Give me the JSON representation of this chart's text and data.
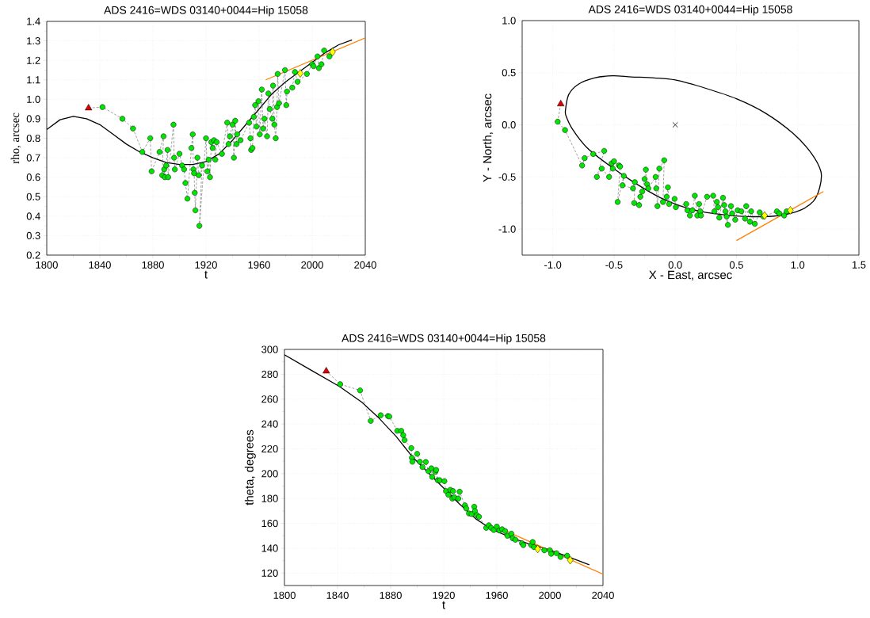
{
  "chart_data": [
    {
      "type": "scatter",
      "title": "ADS 2416=WDS 03140+0044=Hip 15058",
      "xlabel": "t",
      "ylabel": "rho,  arcsec",
      "grid": true,
      "xlim": [
        1800,
        2040
      ],
      "ylim": [
        0.2,
        1.4
      ],
      "xticks": [
        1800,
        1840,
        1880,
        1920,
        1960,
        2000,
        2040
      ],
      "yticks": [
        {
          "value": 0.2,
          "label": "0.2"
        },
        {
          "value": 0.3,
          "label": "0.3"
        },
        {
          "value": 0.4,
          "label": "0.4"
        },
        {
          "value": 0.5,
          "label": "0.5"
        },
        {
          "value": 0.6,
          "label": "0.6"
        },
        {
          "value": 0.7,
          "label": "0.7"
        },
        {
          "value": 0.8,
          "label": "0.8"
        },
        {
          "value": 0.9,
          "label": "0.9"
        },
        {
          "value": 1.0,
          "label": "1.0"
        },
        {
          "value": 1.1,
          "label": "1.1"
        },
        {
          "value": 1.2,
          "label": "1.2"
        },
        {
          "value": 1.3,
          "label": "1.3"
        },
        {
          "value": 1.4,
          "label": "1.4"
        }
      ],
      "series": [
        {
          "type": "line",
          "color": "#000000",
          "x": [
            1800,
            1810,
            1820,
            1830,
            1840,
            1850,
            1860,
            1870,
            1880,
            1890,
            1900,
            1910,
            1920,
            1930,
            1940,
            1950,
            1960,
            1970,
            1980,
            1990,
            2000,
            2010,
            2020,
            2030
          ],
          "values": [
            0.845,
            0.895,
            0.912,
            0.9,
            0.87,
            0.82,
            0.77,
            0.73,
            0.7,
            0.675,
            0.665,
            0.665,
            0.68,
            0.72,
            0.79,
            0.87,
            0.95,
            1.03,
            1.09,
            1.14,
            1.19,
            1.24,
            1.28,
            1.305
          ]
        },
        {
          "type": "line",
          "color": "#ff8000",
          "x": [
            1965,
            2040
          ],
          "values": [
            1.1,
            1.315
          ]
        },
        {
          "type": "line",
          "line_style": "dashed",
          "color": "#404040",
          "x": [
            1831.5,
            1842,
            1857,
            1865,
            1872,
            1878,
            1879,
            1885,
            1888,
            1887,
            1888.5,
            1889,
            1890,
            1891,
            1891.5,
            1895.5,
            1896,
            1896.5,
            1900,
            1902,
            1903.5,
            1904.5,
            1906,
            1909,
            1910,
            1910.5,
            1911,
            1911.5,
            1912,
            1913.5,
            1914.5,
            1917,
            1915,
            1920,
            1921,
            1922,
            1923,
            1924,
            1925,
            1926,
            1927,
            1928,
            1932,
            1936,
            1937,
            1938,
            1940,
            1941,
            1942,
            1943,
            1943.5,
            1946,
            1952.5,
            1953.5,
            1954,
            1955,
            1956,
            1957,
            1958,
            1959.5,
            1960.5,
            1962,
            1963,
            1964,
            1966,
            1967,
            1968,
            1970,
            1970.5,
            1971.5,
            1972.5,
            1973.5,
            1974,
            1975,
            1979.5,
            1980.5,
            1981,
            1985,
            1987,
            1989,
            1996,
            2000,
            2001,
            2004,
            2005,
            2007,
            2009,
            2013
          ],
          "values": [
            0.955,
            0.96,
            0.9,
            0.85,
            0.73,
            0.8,
            0.63,
            0.73,
            0.81,
            0.61,
            0.64,
            0.6,
            0.66,
            0.74,
            0.6,
            0.87,
            0.7,
            0.64,
            0.72,
            0.66,
            0.64,
            0.57,
            0.49,
            0.75,
            0.82,
            0.64,
            0.62,
            0.52,
            0.43,
            0.7,
            0.61,
            0.66,
            0.35,
            0.8,
            0.63,
            0.69,
            0.6,
            0.78,
            0.75,
            0.79,
            0.69,
            0.78,
            0.72,
            0.88,
            0.77,
            0.81,
            0.87,
            0.7,
            0.89,
            0.77,
            0.82,
            0.79,
            0.88,
            0.8,
            0.74,
            0.75,
            0.91,
            0.97,
            0.86,
            0.99,
            0.82,
            1.05,
            0.85,
            0.9,
            0.81,
            1.03,
            0.95,
            0.9,
            1.07,
            0.87,
            0.8,
            0.96,
            1.13,
            0.98,
            1.15,
            0.97,
            1.04,
            1.06,
            1.14,
            1.09,
            1.13,
            1.18,
            1.17,
            1.22,
            1.16,
            1.18,
            1.25,
            1.22
          ]
        },
        {
          "type": "scatter",
          "marker": "circle",
          "color": "#00e600",
          "x": [
            1842,
            1857,
            1865,
            1872,
            1878,
            1879,
            1885,
            1888,
            1887,
            1888.5,
            1889,
            1890,
            1891,
            1891.5,
            1895.5,
            1896,
            1896.5,
            1900,
            1902,
            1903.5,
            1904.5,
            1906,
            1909,
            1910,
            1910.5,
            1911,
            1911.5,
            1912,
            1913.5,
            1914.5,
            1917,
            1915,
            1920,
            1921,
            1922,
            1923,
            1924,
            1925,
            1926,
            1927,
            1928,
            1932,
            1936,
            1937,
            1938,
            1940,
            1941,
            1942,
            1943,
            1943.5,
            1946,
            1952.5,
            1953.5,
            1954,
            1955,
            1956,
            1957,
            1958,
            1959.5,
            1960.5,
            1962,
            1963,
            1964,
            1966,
            1967,
            1968,
            1970,
            1970.5,
            1971.5,
            1972.5,
            1973.5,
            1974,
            1975,
            1979.5,
            1980.5,
            1981,
            1985,
            1987,
            1989,
            1996,
            2000,
            2001,
            2004,
            2005,
            2007,
            2009,
            2013
          ],
          "values": [
            0.96,
            0.9,
            0.85,
            0.73,
            0.8,
            0.63,
            0.73,
            0.81,
            0.61,
            0.64,
            0.6,
            0.66,
            0.74,
            0.6,
            0.87,
            0.7,
            0.64,
            0.72,
            0.66,
            0.64,
            0.57,
            0.49,
            0.75,
            0.82,
            0.64,
            0.62,
            0.52,
            0.43,
            0.7,
            0.61,
            0.66,
            0.35,
            0.8,
            0.63,
            0.69,
            0.6,
            0.78,
            0.75,
            0.79,
            0.69,
            0.78,
            0.72,
            0.88,
            0.77,
            0.81,
            0.87,
            0.7,
            0.89,
            0.77,
            0.82,
            0.79,
            0.88,
            0.8,
            0.74,
            0.75,
            0.91,
            0.97,
            0.86,
            0.99,
            0.82,
            1.05,
            0.85,
            0.9,
            0.81,
            1.03,
            0.95,
            0.9,
            1.07,
            0.87,
            0.8,
            0.96,
            1.13,
            0.98,
            1.15,
            0.97,
            1.04,
            1.06,
            1.14,
            1.09,
            1.13,
            1.18,
            1.17,
            1.22,
            1.16,
            1.18,
            1.25,
            1.22
          ]
        },
        {
          "type": "scatter",
          "marker": "triangle",
          "color": "#e00000",
          "x": [
            1831.5
          ],
          "values": [
            0.955
          ]
        },
        {
          "type": "scatter",
          "marker": "diamond",
          "color": "#ffff00",
          "x": [
            1991,
            2015.3
          ],
          "values": [
            1.133,
            1.243
          ]
        }
      ]
    },
    {
      "type": "scatter",
      "title": "ADS 2416=WDS 03140+0044=Hip 15058",
      "xlabel": "X - East, arcsec",
      "ylabel": "Y - North, arcsec",
      "grid": true,
      "xlim": [
        -1.25,
        1.5
      ],
      "ylim": [
        -1.25,
        1.0
      ],
      "xticks": [
        {
          "value": -1,
          "label": "-1.0"
        },
        {
          "value": -0.5,
          "label": "-0.5"
        },
        {
          "value": 0,
          "label": "0.0"
        },
        {
          "value": 0.5,
          "label": "0.5"
        },
        {
          "value": 1,
          "label": "1.0"
        },
        {
          "value": 1.5,
          "label": "1.5"
        }
      ],
      "yticks": [
        {
          "value": -1,
          "label": "-1.0"
        },
        {
          "value": -0.5,
          "label": "-0.5"
        },
        {
          "value": 0,
          "label": "0.0"
        },
        {
          "value": 0.5,
          "label": "0.5"
        },
        {
          "value": 1,
          "label": "1.0"
        }
      ],
      "series": [
        {
          "type": "line",
          "color": "#ff8000",
          "x": [
            0.5,
            1.21
          ],
          "values": [
            -1.11,
            -0.64
          ]
        },
        {
          "type": "line",
          "line_style": "dashed",
          "color": "#404040",
          "x": [
            -0.935,
            -0.96,
            -0.9,
            -0.76,
            -0.74,
            -0.67,
            -0.58,
            -0.64,
            -0.6,
            -0.54,
            -0.52,
            -0.51,
            -0.5,
            -0.46,
            -0.45,
            -0.47,
            -0.42,
            -0.43,
            -0.345,
            -0.33,
            -0.335,
            -0.295,
            -0.285,
            -0.27,
            -0.25,
            -0.24,
            -0.23,
            -0.22,
            -0.16,
            -0.155,
            -0.145,
            -0.13,
            -0.09,
            -0.1,
            -0.07,
            -0.06,
            -0.05,
            -0.005,
            0.005,
            0.09,
            0.1,
            0.12,
            0.14,
            0.16,
            0.18,
            0.195,
            0.205,
            0.21,
            0.26,
            0.31,
            0.32,
            0.34,
            0.35,
            0.36,
            0.39,
            0.4,
            0.41,
            0.43,
            0.42,
            0.455,
            0.465,
            0.49,
            0.51,
            0.54,
            0.57,
            0.58,
            0.61,
            0.62,
            0.65,
            0.69,
            0.72,
            0.83,
            0.85,
            0.89,
            0.91
          ],
          "values": [
            0.2,
            0.03,
            -0.05,
            -0.39,
            -0.32,
            -0.28,
            -0.25,
            -0.5,
            -0.42,
            -0.5,
            -0.37,
            -0.42,
            -0.35,
            -0.39,
            -0.4,
            -0.74,
            -0.49,
            -0.58,
            -0.61,
            -0.55,
            -0.75,
            -0.77,
            -0.69,
            -0.64,
            -0.52,
            -0.43,
            -0.57,
            -0.61,
            -0.5,
            -0.61,
            -0.78,
            -0.42,
            -0.34,
            -0.74,
            -0.69,
            -0.6,
            -0.76,
            -0.71,
            -0.79,
            -0.76,
            -0.82,
            -0.87,
            -0.82,
            -0.68,
            -0.87,
            -0.76,
            -0.83,
            -0.87,
            -0.69,
            -0.68,
            -0.83,
            -0.74,
            -0.79,
            -0.89,
            -0.7,
            -0.77,
            -0.83,
            -0.96,
            -0.88,
            -0.78,
            -0.85,
            -0.91,
            -0.82,
            -0.83,
            -0.9,
            -0.78,
            -0.93,
            -0.83,
            -0.95,
            -0.84,
            -0.88,
            -0.83,
            -0.85,
            -0.87,
            -0.83
          ]
        },
        {
          "type": "scatter",
          "marker": "circle",
          "color": "#00e600",
          "x": [
            -0.96,
            -0.9,
            -0.76,
            -0.74,
            -0.67,
            -0.58,
            -0.64,
            -0.6,
            -0.54,
            -0.52,
            -0.51,
            -0.5,
            -0.46,
            -0.45,
            -0.47,
            -0.42,
            -0.43,
            -0.345,
            -0.33,
            -0.335,
            -0.295,
            -0.285,
            -0.27,
            -0.25,
            -0.24,
            -0.23,
            -0.22,
            -0.16,
            -0.155,
            -0.145,
            -0.13,
            -0.09,
            -0.1,
            -0.07,
            -0.06,
            -0.05,
            -0.005,
            0.005,
            0.09,
            0.1,
            0.12,
            0.14,
            0.16,
            0.18,
            0.195,
            0.205,
            0.21,
            0.26,
            0.31,
            0.32,
            0.34,
            0.35,
            0.36,
            0.39,
            0.4,
            0.41,
            0.43,
            0.42,
            0.455,
            0.465,
            0.49,
            0.51,
            0.54,
            0.57,
            0.58,
            0.61,
            0.62,
            0.65,
            0.69,
            0.72,
            0.83,
            0.85,
            0.89,
            0.91
          ],
          "values": [
            0.03,
            -0.05,
            -0.39,
            -0.32,
            -0.28,
            -0.25,
            -0.5,
            -0.42,
            -0.5,
            -0.37,
            -0.42,
            -0.35,
            -0.39,
            -0.4,
            -0.74,
            -0.49,
            -0.58,
            -0.61,
            -0.55,
            -0.75,
            -0.77,
            -0.69,
            -0.64,
            -0.52,
            -0.43,
            -0.57,
            -0.61,
            -0.5,
            -0.61,
            -0.78,
            -0.42,
            -0.34,
            -0.74,
            -0.69,
            -0.6,
            -0.76,
            -0.71,
            -0.79,
            -0.76,
            -0.82,
            -0.87,
            -0.82,
            -0.68,
            -0.87,
            -0.76,
            -0.83,
            -0.87,
            -0.69,
            -0.68,
            -0.83,
            -0.74,
            -0.79,
            -0.89,
            -0.7,
            -0.77,
            -0.83,
            -0.96,
            -0.88,
            -0.78,
            -0.85,
            -0.91,
            -0.82,
            -0.83,
            -0.9,
            -0.78,
            -0.93,
            -0.83,
            -0.95,
            -0.84,
            -0.88,
            -0.83,
            -0.85,
            -0.87,
            -0.83
          ]
        },
        {
          "type": "scatter",
          "marker": "triangle",
          "color": "#e00000",
          "x": [
            -0.935
          ],
          "values": [
            0.2
          ]
        },
        {
          "type": "scatter",
          "marker": "diamond",
          "color": "#ffff00",
          "x": [
            0.73,
            0.94
          ],
          "values": [
            -0.87,
            -0.82
          ]
        },
        {
          "type": "scatter",
          "marker": "cross",
          "color": "#000000",
          "x": [
            0.0
          ],
          "values": [
            0.0
          ]
        }
      ]
    },
    {
      "type": "scatter",
      "title": "ADS 2416=WDS 03140+0044=Hip 15058",
      "xlabel": "t",
      "ylabel": "theta, degrees",
      "grid": true,
      "xlim": [
        1800,
        2040
      ],
      "ylim": [
        110,
        300
      ],
      "xticks": [
        1800,
        1840,
        1880,
        1920,
        1960,
        2000,
        2040
      ],
      "yticks": [
        120,
        140,
        160,
        180,
        200,
        220,
        240,
        260,
        280,
        300
      ],
      "series": [
        {
          "type": "line",
          "color": "#000000",
          "x": [
            1800,
            1820.5,
            1841.4,
            1858.4,
            1870.3,
            1884.3,
            1896.2,
            1908.2,
            1920.1,
            1932,
            1944,
            1956,
            1970,
            1984,
            1997.8,
            2011.7,
            2029.7
          ],
          "values": [
            295.7,
            283,
            270.2,
            257.4,
            245.7,
            229.8,
            213.8,
            201,
            188.3,
            175.5,
            163.8,
            155.3,
            148.9,
            143.6,
            139.4,
            134,
            126.6
          ]
        },
        {
          "type": "line",
          "color": "#ff8000",
          "x": [
            1965,
            2040
          ],
          "values": [
            154.7,
            119.1
          ]
        },
        {
          "type": "line",
          "line_style": "dashed",
          "color": "#404040",
          "x": [
            1831.5,
            1842,
            1857,
            1865,
            1872.5,
            1878,
            1879,
            1885,
            1888,
            1889.5,
            1890.5,
            1895.6,
            1896,
            1896.4,
            1900,
            1902,
            1904,
            1906.5,
            1908.5,
            1910.7,
            1911.3,
            1913.7,
            1914.3,
            1915.5,
            1917,
            1920.5,
            1921.7,
            1923.5,
            1925,
            1926.5,
            1927,
            1928,
            1931,
            1932,
            1936,
            1937,
            1939,
            1941,
            1943,
            1943.5,
            1945,
            1946.6,
            1952,
            1954,
            1955.7,
            1957.7,
            1960,
            1962,
            1964,
            1966.3,
            1968,
            1971,
            1972,
            1974,
            1979,
            1980,
            1986,
            1987,
            1988,
            1995.8,
            2000,
            2001,
            2005,
            2008,
            2013
          ],
          "values": [
            282.5,
            272,
            267,
            242.5,
            247,
            246.4,
            246,
            234.5,
            234.5,
            231,
            227,
            220.6,
            212.8,
            209.6,
            216,
            209.6,
            205.3,
            209.4,
            202,
            204.3,
            197.4,
            201.5,
            203,
            194.7,
            194.7,
            194,
            186,
            183,
            187,
            180,
            186,
            181,
            180,
            185.5,
            174.5,
            172,
            168,
            167.5,
            173.4,
            170,
            166.6,
            165.3,
            156.4,
            158.5,
            156.4,
            154.7,
            157.4,
            154.3,
            155.3,
            153.8,
            150,
            151.7,
            148,
            146.8,
            144,
            142.5,
            142.5,
            145,
            140.9,
            138.3,
            138.3,
            135.5,
            136,
            133,
            134
          ]
        },
        {
          "type": "scatter",
          "marker": "circle",
          "color": "#00e600",
          "x": [
            1842,
            1857,
            1865,
            1872.5,
            1878,
            1879,
            1885,
            1888,
            1889.5,
            1890.5,
            1895.6,
            1896,
            1896.4,
            1900,
            1902,
            1904,
            1906.5,
            1908.5,
            1910.7,
            1911.3,
            1913.7,
            1914.3,
            1915.5,
            1917,
            1920.5,
            1921.7,
            1923.5,
            1925,
            1926.5,
            1927,
            1928,
            1931,
            1932,
            1936,
            1937,
            1939,
            1941,
            1943,
            1943.5,
            1945,
            1946.6,
            1952,
            1954,
            1955.7,
            1957.7,
            1960,
            1962,
            1964,
            1966.3,
            1968,
            1971,
            1972,
            1974,
            1979,
            1980,
            1986,
            1987,
            1988,
            1995.8,
            2000,
            2001,
            2005,
            2008,
            2013
          ],
          "values": [
            272,
            267,
            242.5,
            247,
            246.4,
            246,
            234.5,
            234.5,
            231,
            227,
            220.6,
            212.8,
            209.6,
            216,
            209.6,
            205.3,
            209.4,
            202,
            204.3,
            197.4,
            201.5,
            203,
            194.7,
            194.7,
            194,
            186,
            183,
            187,
            180,
            186,
            181,
            180,
            185.5,
            174.5,
            172,
            168,
            167.5,
            173.4,
            170,
            166.6,
            165.3,
            156.4,
            158.5,
            156.4,
            154.7,
            157.4,
            154.3,
            155.3,
            153.8,
            150,
            151.7,
            148,
            146.8,
            144,
            142.5,
            142.5,
            145,
            140.9,
            138.3,
            138.3,
            135.5,
            136,
            133,
            134
          ]
        },
        {
          "type": "scatter",
          "marker": "triangle",
          "color": "#e00000",
          "x": [
            1831.5
          ],
          "values": [
            282.5
          ]
        },
        {
          "type": "scatter",
          "marker": "diamond",
          "color": "#ffff00",
          "x": [
            1990.8,
            2015.3
          ],
          "values": [
            139.4,
            130.4
          ]
        }
      ]
    }
  ]
}
